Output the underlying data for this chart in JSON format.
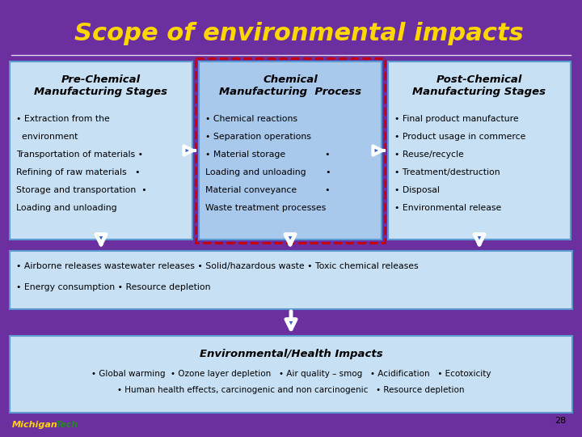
{
  "title": "Scope of environmental impacts",
  "title_color": "#FFD700",
  "bg_color": "#6B2FA0",
  "box_fill_light": "#C8E0F4",
  "box_fill_mid": "#A8C8EC",
  "box_edge": "#5A9AD0",
  "pre_title": "Pre-Chemical\nManufacturing Stages",
  "pre_items_line1": "• Extraction from the",
  "pre_items_line2": "  environment",
  "pre_items_line3": "Transportation of materials •",
  "pre_items_line4": "Refining of raw materials   •",
  "pre_items_line5": "Storage and transportation  •",
  "pre_items_line6": "Loading and unloading",
  "chem_title": "Chemical\nManufacturing  Process",
  "chem_items_line1": "• Chemical reactions",
  "chem_items_line2": "• Separation operations",
  "chem_items_line3": "• Material storage              •",
  "chem_items_line4": "Loading and unloading       •",
  "chem_items_line5": "Material conveyance          •",
  "chem_items_line6": "Waste treatment processes",
  "post_title": "Post-Chemical\nManufacturing Stages",
  "post_items_line1": "• Final product manufacture",
  "post_items_line2": "• Product usage in commerce",
  "post_items_line3": "• Reuse/recycle",
  "post_items_line4": "• Treatment/destruction",
  "post_items_line5": "• Disposal",
  "post_items_line6": "• Environmental release",
  "bottom_line1": "• Airborne releases wastewater releases • Solid/hazardous waste • Toxic chemical releases",
  "bottom_line2": "• Energy consumption • Resource depletion",
  "env_title": "Environmental/Health Impacts",
  "env_line1": "• Global warming  • Ozone layer depletion   • Air quality – smog   • Acidification   • Ecotoxicity",
  "env_line2": "• Human health effects, carcinogenic and non carcinogenic   • Resource depletion",
  "page_num": "28",
  "arrow_fill": "#3060CC",
  "arrow_edge": "#FFFFFF",
  "dashed_border_color": "#CC0000",
  "title_line_color": "#FFFFFF"
}
